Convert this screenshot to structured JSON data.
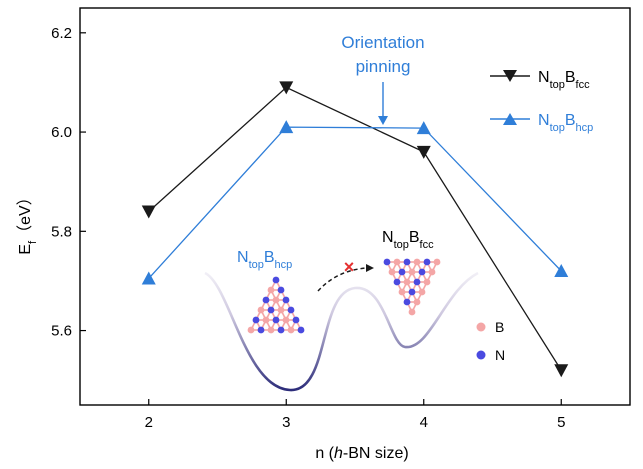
{
  "chart_data": {
    "type": "line",
    "x": [
      2,
      3,
      4,
      5
    ],
    "xlim": [
      1.5,
      5.5
    ],
    "ylim": [
      5.45,
      6.25
    ],
    "xticks": [
      "2",
      "3",
      "4",
      "5"
    ],
    "yticks": [
      "5.6",
      "5.8",
      "6.0",
      "6.2"
    ],
    "ytick_values": [
      5.6,
      5.8,
      6.0,
      6.2
    ],
    "xlabel": {
      "pre": "n (",
      "italic": "h",
      "post": "-BN size)"
    },
    "ylabel": {
      "main": "E",
      "sub": "f",
      "post": "（eV）"
    },
    "grid": false,
    "legend_position": "top-right",
    "series": [
      {
        "name": {
          "main": "N",
          "sub1": "top",
          "mid": "B",
          "sub2": "fcc"
        },
        "marker": "triangle-down",
        "color": "#1a1a1a",
        "values": [
          5.84,
          6.09,
          5.96,
          5.52
        ]
      },
      {
        "name": {
          "main": "N",
          "sub1": "top",
          "mid": "B",
          "sub2": "hcp"
        },
        "marker": "triangle-up",
        "color": "#2f7ed8",
        "values": [
          5.705,
          6.01,
          6.008,
          5.72
        ]
      }
    ],
    "annotations": {
      "orientation_line1": "Orientation",
      "orientation_line2": "pinning",
      "inset_left_label": {
        "main": "N",
        "sub1": "top",
        "mid": "B",
        "sub2": "hcp"
      },
      "inset_right_label": {
        "main": "N",
        "sub1": "top",
        "mid": "B",
        "sub2": "fcc"
      },
      "blocked_mark": "×",
      "atom_legend": [
        {
          "label": "B",
          "color": "#f4a6a6"
        },
        {
          "label": "N",
          "color": "#4a4ae0"
        }
      ]
    }
  }
}
